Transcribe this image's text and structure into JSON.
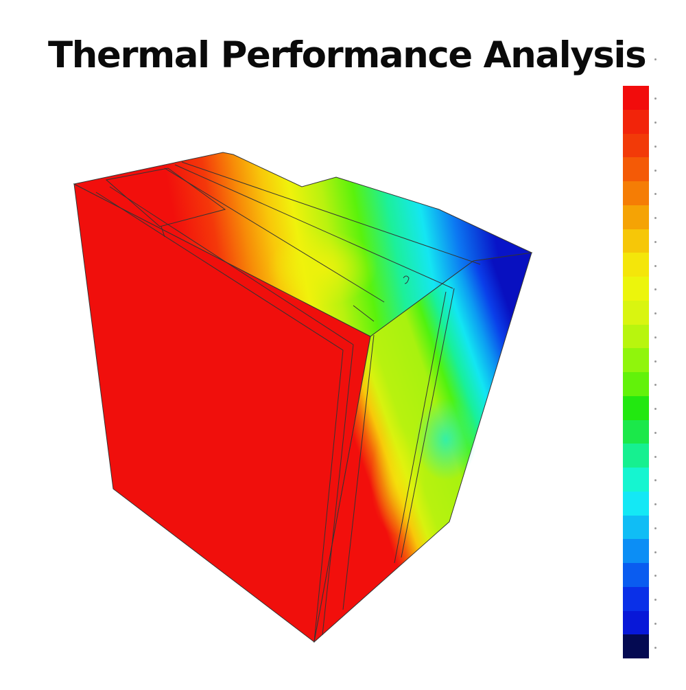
{
  "title": "Thermal Performance Analysis",
  "colorbar": {
    "orientation": "vertical",
    "direction": "hot-top",
    "bands": [
      "#f20c0c",
      "#f2240a",
      "#f23a08",
      "#f45a06",
      "#f57d05",
      "#f5a305",
      "#f6c708",
      "#f4e60a",
      "#ecf50c",
      "#d9f510",
      "#b8f50e",
      "#90f50c",
      "#62f20a",
      "#22e810",
      "#1be84a",
      "#16f090",
      "#15f5d0",
      "#14e8f5",
      "#10bdf5",
      "#0c8ef5",
      "#0a5cf0",
      "#0a30e8",
      "#0818d8",
      "#040a52"
    ]
  },
  "colors": {
    "hot": "#f00f0c",
    "warm": "#f5e60a",
    "mild": "#b8f20f",
    "cool": "#12f0f0",
    "cold": "#0a14c8",
    "edge_line": "#333333"
  }
}
